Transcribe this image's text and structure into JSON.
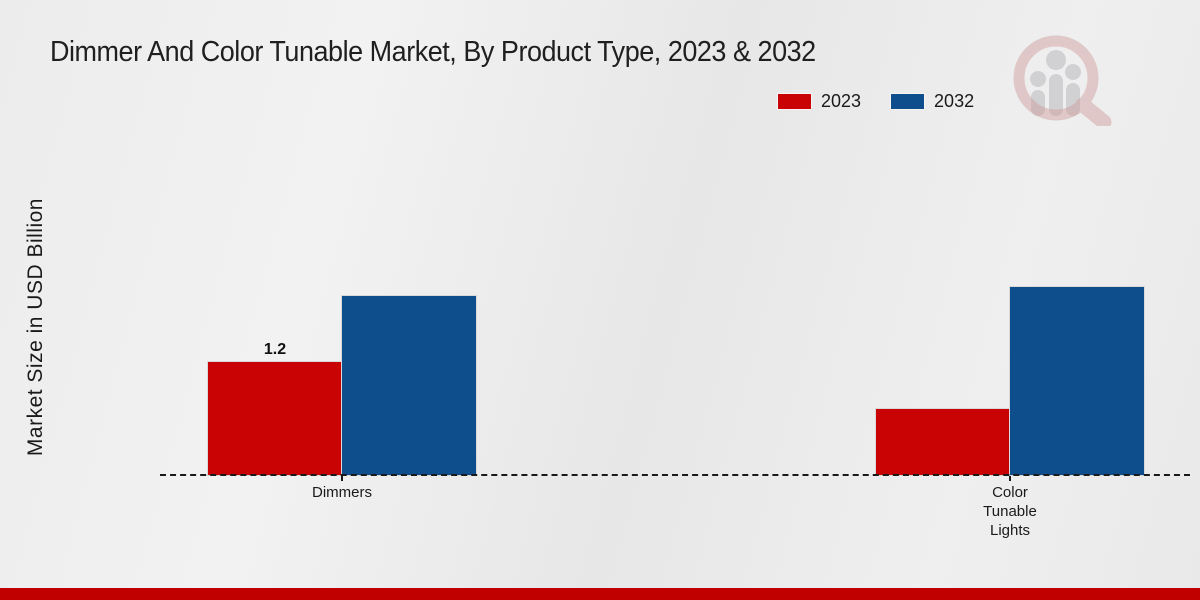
{
  "title": "Dimmer And Color Tunable Market, By Product Type, 2023 & 2032",
  "y_axis_label": "Market Size in USD Billion",
  "legend": {
    "position": "top-right",
    "items": [
      {
        "label": "2023",
        "color": "#c90303"
      },
      {
        "label": "2032",
        "color": "#0f4e8c"
      }
    ]
  },
  "icons": {
    "watermark": "magnifier-people-bar-chart-logo"
  },
  "colors": {
    "series_2023": "#c90303",
    "series_2032": "#0f4e8c",
    "background": "#ececec",
    "axis": "#1a1a1a",
    "footer_stripe": "#c00000"
  },
  "chart_data": {
    "type": "bar",
    "title": "Dimmer And Color Tunable Market, By Product Type, 2023 & 2032",
    "xlabel": "",
    "ylabel": "Market Size in USD Billion",
    "categories": [
      "Dimmers",
      "Color Tunable Lights"
    ],
    "series": [
      {
        "name": "2023",
        "color": "#c90303",
        "values": [
          1.2,
          0.7
        ]
      },
      {
        "name": "2032",
        "color": "#0f4e8c",
        "values": [
          1.9,
          2.0
        ]
      }
    ],
    "data_labels": [
      {
        "category_index": 0,
        "series_index": 0,
        "text": "1.2"
      }
    ],
    "ylim": [
      0,
      2.2
    ],
    "grid": false,
    "y_tick_labels_visible": false,
    "baseline_style": "dashed",
    "legend_position": "top-right"
  }
}
